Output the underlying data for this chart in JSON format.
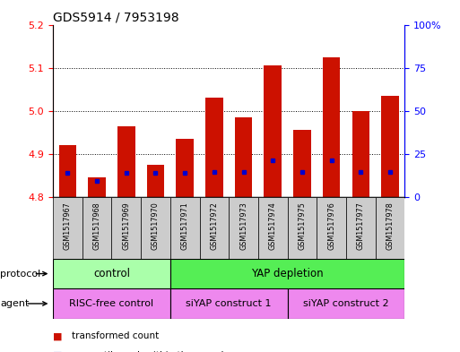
{
  "title": "GDS5914 / 7953198",
  "samples": [
    "GSM1517967",
    "GSM1517968",
    "GSM1517969",
    "GSM1517970",
    "GSM1517971",
    "GSM1517972",
    "GSM1517973",
    "GSM1517974",
    "GSM1517975",
    "GSM1517976",
    "GSM1517977",
    "GSM1517978"
  ],
  "bar_values": [
    4.92,
    4.845,
    4.965,
    4.875,
    4.935,
    5.03,
    4.985,
    5.105,
    4.955,
    5.125,
    5.0,
    5.035
  ],
  "blue_dot_values": [
    4.856,
    4.838,
    4.857,
    4.856,
    4.857,
    4.858,
    4.858,
    4.885,
    4.858,
    4.886,
    4.858,
    4.858
  ],
  "bar_bottom": 4.8,
  "ylim": [
    4.8,
    5.2
  ],
  "yticks_left": [
    4.8,
    4.9,
    5.0,
    5.1,
    5.2
  ],
  "bar_color": "#cc1100",
  "dot_color": "#0000cc",
  "protocol_groups": [
    {
      "label": "control",
      "start": 0,
      "end": 4,
      "color": "#aaffaa"
    },
    {
      "label": "YAP depletion",
      "start": 4,
      "end": 12,
      "color": "#55ee55"
    }
  ],
  "agent_groups": [
    {
      "label": "RISC-free control",
      "start": 0,
      "end": 4,
      "color": "#ee88ee"
    },
    {
      "label": "siYAP construct 1",
      "start": 4,
      "end": 8,
      "color": "#ee88ee"
    },
    {
      "label": "siYAP construct 2",
      "start": 8,
      "end": 12,
      "color": "#ee88ee"
    }
  ],
  "bg_color": "#ffffff",
  "title_fontsize": 10,
  "tick_fontsize": 8,
  "label_fontsize": 8,
  "bar_width": 0.6,
  "sample_box_color": "#cccccc"
}
